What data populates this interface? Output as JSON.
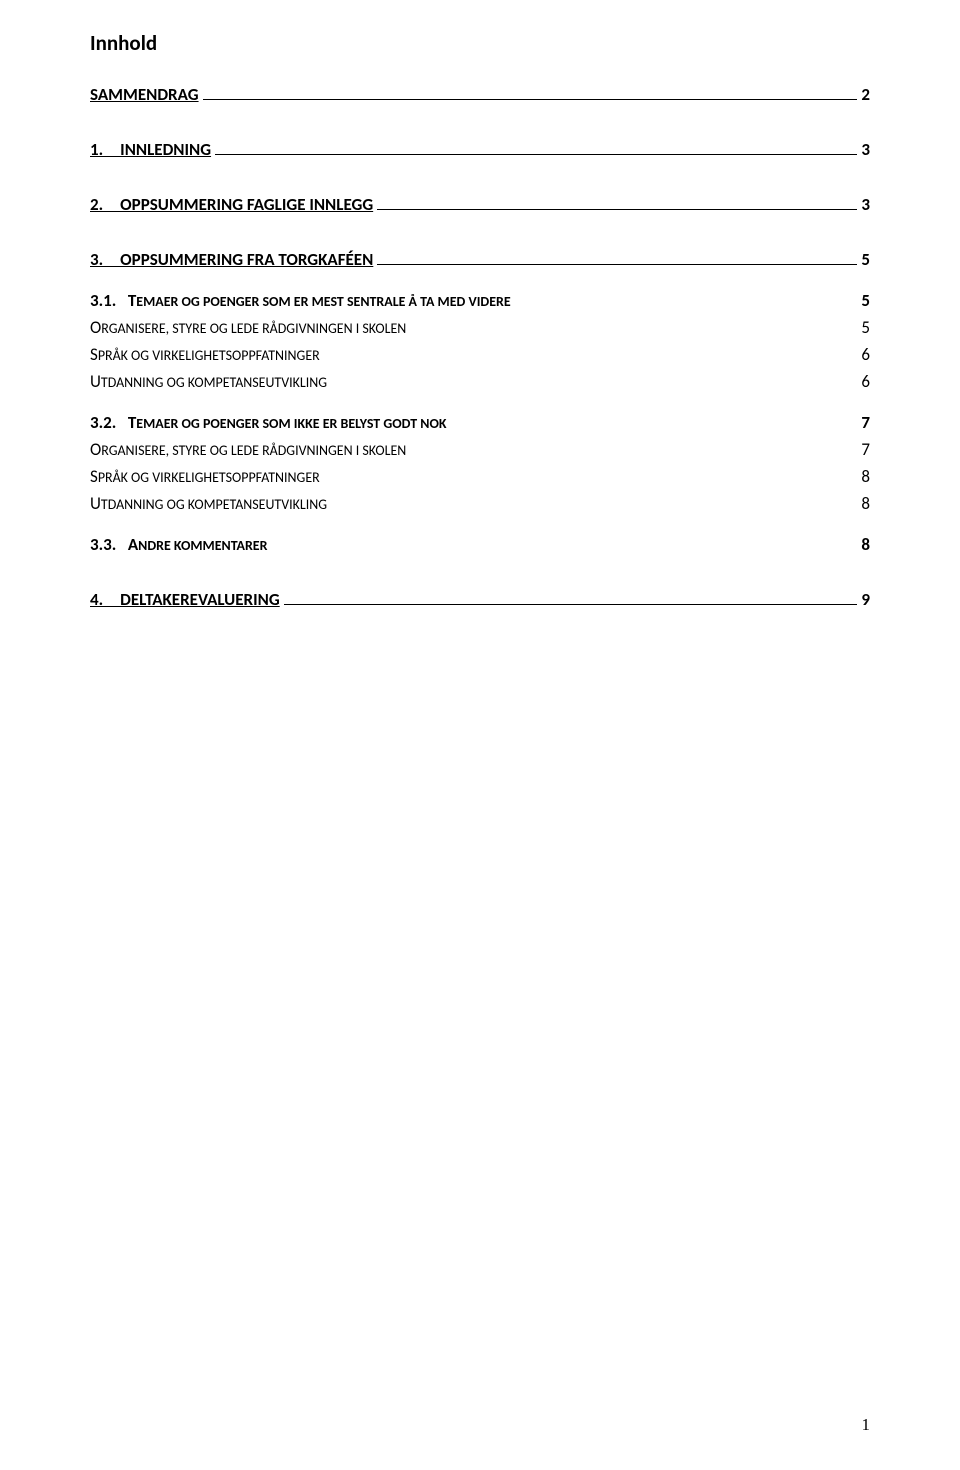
{
  "title": "Innhold",
  "entries": [
    {
      "type": "heading",
      "text": "SAMMENDRAG",
      "page": "2",
      "underlined": true,
      "spacer_after": "large"
    },
    {
      "type": "heading",
      "text": "1. INNLEDNING",
      "page": "3",
      "underlined": true,
      "spacer_after": "large"
    },
    {
      "type": "heading",
      "text": "2. OPPSUMMERING FAGLIGE INNLEGG",
      "page": "3",
      "underlined": true,
      "spacer_after": "large"
    },
    {
      "type": "heading",
      "text": "3. OPPSUMMERING FRA TORGKAFÉEN",
      "page": "5",
      "underlined": true,
      "spacer_after": "small"
    },
    {
      "type": "subheading",
      "text_parts": [
        [
          "3.1.",
          "upper"
        ],
        [
          "   ",
          "gap"
        ],
        [
          "T",
          "upper"
        ],
        [
          "emaer og poenger som er mest sentrale å ta med videre",
          "lower"
        ]
      ],
      "page": "5",
      "spacer_after": "none"
    },
    {
      "type": "body",
      "text_parts": [
        [
          "O",
          "upper"
        ],
        [
          "rganisere, styre og lede rådgivningen i skolen",
          "lower"
        ]
      ],
      "page": "5",
      "spacer_after": "none"
    },
    {
      "type": "body",
      "text_parts": [
        [
          "S",
          "upper"
        ],
        [
          "pråk og virkelighetsoppfatninger",
          "lower"
        ]
      ],
      "page": "6",
      "spacer_after": "none"
    },
    {
      "type": "body",
      "text_parts": [
        [
          "U",
          "upper"
        ],
        [
          "tdanning og kompetanseutvikling",
          "lower"
        ]
      ],
      "page": "6",
      "spacer_after": "small"
    },
    {
      "type": "subheading",
      "text_parts": [
        [
          "3.2.",
          "upper"
        ],
        [
          "   ",
          "gap"
        ],
        [
          "T",
          "upper"
        ],
        [
          "emaer og poenger som ikke er belyst godt nok",
          "lower"
        ]
      ],
      "page": "7",
      "spacer_after": "none"
    },
    {
      "type": "body",
      "text_parts": [
        [
          "O",
          "upper"
        ],
        [
          "rganisere, styre og lede rådgivningen i skolen",
          "lower"
        ]
      ],
      "page": "7",
      "spacer_after": "none"
    },
    {
      "type": "body",
      "text_parts": [
        [
          "S",
          "upper"
        ],
        [
          "pråk og virkelighetsoppfatninger",
          "lower"
        ]
      ],
      "page": "8",
      "spacer_after": "none"
    },
    {
      "type": "body",
      "text_parts": [
        [
          "U",
          "upper"
        ],
        [
          "tdanning og kompetanseutvikling",
          "lower"
        ]
      ],
      "page": "8",
      "spacer_after": "small"
    },
    {
      "type": "subheading",
      "text_parts": [
        [
          "3.3.",
          "upper"
        ],
        [
          "   ",
          "gap"
        ],
        [
          "A",
          "upper"
        ],
        [
          "ndre kommentarer",
          "lower"
        ]
      ],
      "page": "8",
      "spacer_after": "large"
    },
    {
      "type": "heading",
      "text": "4. DELTAKEREVALUERING",
      "page": "9",
      "underlined": true,
      "spacer_after": "none"
    }
  ],
  "page_number": "1",
  "colors": {
    "background": "#ffffff",
    "text": "#000000",
    "line": "#000000"
  },
  "fonts": {
    "title_size": 21,
    "entry_size": 17,
    "title_weight": "bold"
  }
}
